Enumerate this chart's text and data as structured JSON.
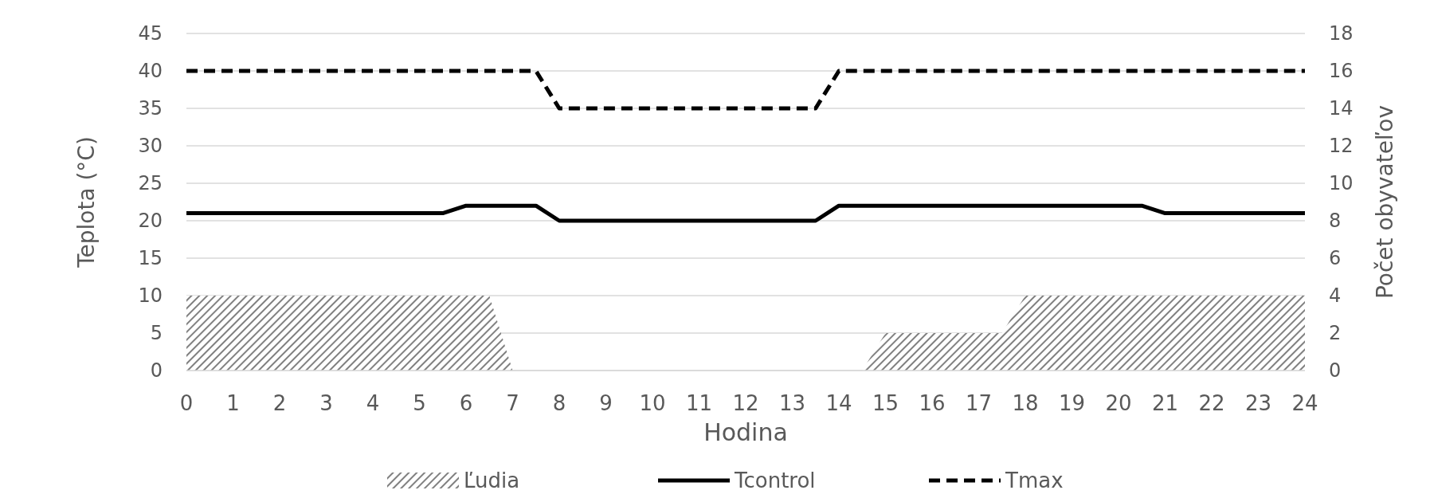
{
  "chart_data": {
    "type": "line",
    "xlabel": "Hodina",
    "ylabel": "Teplota (°C)",
    "y2label": "Počet obyvateľov",
    "xlim": [
      0,
      24
    ],
    "xticks": [
      0,
      1,
      2,
      3,
      4,
      5,
      6,
      7,
      8,
      9,
      10,
      11,
      12,
      13,
      14,
      15,
      16,
      17,
      18,
      19,
      20,
      21,
      22,
      23,
      24
    ],
    "ylim": [
      0,
      45
    ],
    "yticks": [
      0,
      5,
      10,
      15,
      20,
      25,
      30,
      35,
      40,
      45
    ],
    "y2lim": [
      0,
      18
    ],
    "y2ticks": [
      0,
      2,
      4,
      6,
      8,
      10,
      12,
      14,
      16,
      18
    ],
    "grid": "y",
    "legend": "bottom",
    "series": [
      {
        "name": "Ľudia",
        "type": "area",
        "axis": "y2",
        "color": "#808080",
        "x": [
          0,
          6.5,
          7,
          14.5,
          15,
          17.5,
          18,
          24
        ],
        "values": [
          4,
          4,
          0,
          0,
          2,
          2,
          4,
          4
        ]
      },
      {
        "name": "Tcontrol",
        "type": "line",
        "color": "#000000",
        "line_style": "solid",
        "x": [
          0,
          5.5,
          6,
          7.5,
          8,
          13.5,
          14,
          20.5,
          21,
          24
        ],
        "values": [
          21,
          21,
          22,
          22,
          20,
          20,
          22,
          22,
          21,
          21
        ]
      },
      {
        "name": "Tmax",
        "type": "line",
        "color": "#000000",
        "line_style": "dashed",
        "x": [
          0,
          7.5,
          8,
          13.5,
          14,
          24
        ],
        "values": [
          40,
          40,
          35,
          35,
          40,
          40
        ]
      }
    ]
  }
}
